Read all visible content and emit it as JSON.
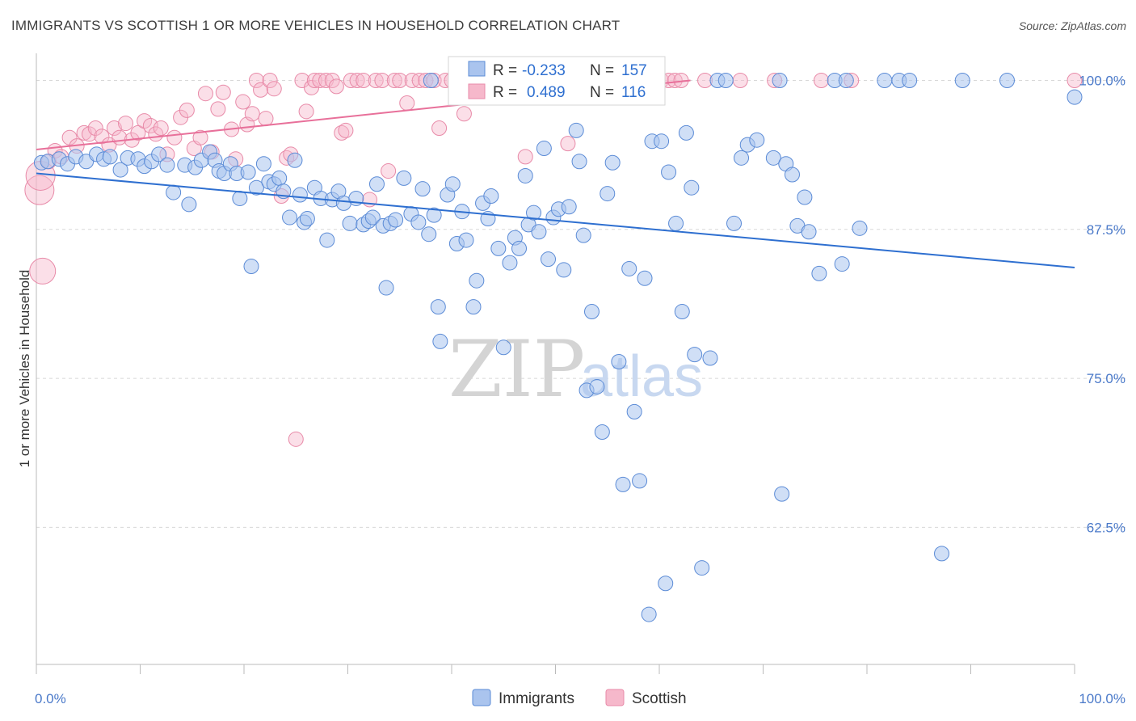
{
  "title": "IMMIGRANTS VS SCOTTISH 1 OR MORE VEHICLES IN HOUSEHOLD CORRELATION CHART",
  "source": "Source: ZipAtlas.com",
  "watermark": {
    "zip": "ZIP",
    "atlas": "atlas"
  },
  "colors": {
    "immigrants_fill": "#aac4ee",
    "immigrants_stroke": "#5b8bd6",
    "immigrants_line": "#2e6fd0",
    "scottish_fill": "#f6b8cb",
    "scottish_stroke": "#e88aa8",
    "scottish_line": "#e8709a",
    "tick_text": "#4a79c9",
    "grid": "#d8d8d8"
  },
  "legend": {
    "row1": {
      "r_label": "R =",
      "r_value": "-0.233",
      "n_label": "N =",
      "n_value": "157"
    },
    "row2": {
      "r_label": "R =",
      "r_value": "0.489",
      "n_label": "N =",
      "n_value": "116"
    }
  },
  "bottom_legend": {
    "immigrants": "Immigrants",
    "scottish": "Scottish"
  },
  "chart_data": {
    "type": "scatter",
    "title": "IMMIGRANTS VS SCOTTISH 1 OR MORE VEHICLES IN HOUSEHOLD CORRELATION CHART",
    "xlabel": "",
    "ylabel": "1 or more Vehicles in Household",
    "xlim": [
      0,
      100
    ],
    "ylim": [
      51,
      102
    ],
    "x_tick_labels": [
      "0.0%",
      "100.0%"
    ],
    "y_ticks": [
      100.0,
      87.5,
      75.0,
      62.5
    ],
    "y_tick_labels": [
      "100.0%",
      "87.5%",
      "75.0%",
      "62.5%"
    ],
    "grid": true,
    "legend_position": "top-center",
    "series": [
      {
        "name": "Immigrants",
        "r": -0.233,
        "n": 157,
        "trend": {
          "x": [
            0,
            100
          ],
          "y": [
            92.2,
            84.3
          ]
        },
        "points": [
          [
            0.5,
            93.1
          ],
          [
            1.1,
            93.2
          ],
          [
            2.2,
            93.4
          ],
          [
            3.0,
            93.0
          ],
          [
            3.8,
            93.6
          ],
          [
            4.8,
            93.2
          ],
          [
            5.8,
            93.8
          ],
          [
            6.5,
            93.4
          ],
          [
            7.1,
            93.6
          ],
          [
            8.1,
            92.5
          ],
          [
            8.8,
            93.5
          ],
          [
            9.8,
            93.4
          ],
          [
            10.4,
            92.8
          ],
          [
            11.1,
            93.2
          ],
          [
            11.8,
            93.8
          ],
          [
            12.6,
            92.9
          ],
          [
            13.2,
            90.6
          ],
          [
            14.3,
            92.9
          ],
          [
            14.7,
            89.6
          ],
          [
            15.3,
            92.7
          ],
          [
            15.9,
            93.3
          ],
          [
            16.7,
            94.0
          ],
          [
            17.2,
            93.3
          ],
          [
            17.6,
            92.4
          ],
          [
            18.1,
            92.2
          ],
          [
            18.7,
            93.0
          ],
          [
            19.3,
            92.2
          ],
          [
            19.6,
            90.1
          ],
          [
            20.4,
            92.3
          ],
          [
            20.7,
            84.4
          ],
          [
            21.2,
            91.0
          ],
          [
            21.9,
            93.0
          ],
          [
            22.4,
            91.5
          ],
          [
            22.9,
            91.3
          ],
          [
            23.4,
            91.8
          ],
          [
            23.8,
            90.7
          ],
          [
            24.4,
            88.5
          ],
          [
            24.9,
            93.3
          ],
          [
            25.4,
            90.4
          ],
          [
            25.8,
            88.1
          ],
          [
            26.1,
            88.4
          ],
          [
            26.8,
            91.0
          ],
          [
            27.4,
            90.1
          ],
          [
            28.0,
            86.6
          ],
          [
            28.5,
            90.0
          ],
          [
            29.1,
            90.7
          ],
          [
            29.6,
            89.7
          ],
          [
            30.2,
            88.0
          ],
          [
            30.8,
            90.1
          ],
          [
            31.5,
            87.9
          ],
          [
            32.0,
            88.2
          ],
          [
            32.4,
            88.5
          ],
          [
            32.8,
            91.3
          ],
          [
            33.4,
            87.8
          ],
          [
            33.7,
            82.6
          ],
          [
            34.1,
            88.0
          ],
          [
            34.6,
            88.3
          ],
          [
            35.4,
            91.8
          ],
          [
            36.1,
            88.8
          ],
          [
            36.8,
            88.1
          ],
          [
            37.2,
            90.9
          ],
          [
            37.8,
            87.1
          ],
          [
            38.3,
            88.7
          ],
          [
            38.7,
            81.0
          ],
          [
            38.9,
            78.1
          ],
          [
            39.6,
            90.4
          ],
          [
            40.1,
            91.3
          ],
          [
            40.5,
            86.3
          ],
          [
            41.0,
            89.0
          ],
          [
            41.4,
            86.6
          ],
          [
            42.1,
            81.0
          ],
          [
            42.4,
            83.2
          ],
          [
            43.0,
            89.7
          ],
          [
            43.5,
            88.4
          ],
          [
            43.8,
            90.3
          ],
          [
            44.5,
            85.9
          ],
          [
            45.0,
            77.6
          ],
          [
            45.6,
            84.7
          ],
          [
            46.1,
            86.8
          ],
          [
            46.5,
            85.9
          ],
          [
            47.1,
            92.0
          ],
          [
            47.4,
            87.9
          ],
          [
            47.9,
            88.9
          ],
          [
            48.4,
            87.3
          ],
          [
            48.9,
            94.3
          ],
          [
            49.3,
            85.0
          ],
          [
            49.8,
            88.5
          ],
          [
            50.3,
            89.2
          ],
          [
            50.8,
            84.1
          ],
          [
            51.3,
            89.4
          ],
          [
            52.0,
            95.8
          ],
          [
            52.3,
            93.2
          ],
          [
            52.7,
            87.0
          ],
          [
            53.0,
            74.0
          ],
          [
            53.5,
            80.6
          ],
          [
            54.0,
            74.3
          ],
          [
            54.5,
            70.5
          ],
          [
            55.0,
            90.5
          ],
          [
            55.5,
            93.1
          ],
          [
            56.1,
            76.4
          ],
          [
            56.5,
            66.1
          ],
          [
            57.1,
            84.2
          ],
          [
            57.6,
            72.2
          ],
          [
            58.1,
            66.4
          ],
          [
            58.6,
            83.4
          ],
          [
            59.0,
            55.2
          ],
          [
            59.3,
            94.9
          ],
          [
            60.2,
            94.9
          ],
          [
            60.6,
            57.8
          ],
          [
            60.9,
            92.3
          ],
          [
            61.6,
            88.0
          ],
          [
            62.2,
            80.6
          ],
          [
            62.6,
            95.6
          ],
          [
            63.1,
            91.0
          ],
          [
            63.4,
            77.0
          ],
          [
            64.1,
            59.1
          ],
          [
            64.9,
            76.7
          ],
          [
            65.6,
            100.0
          ],
          [
            66.4,
            100.0
          ],
          [
            67.2,
            88.0
          ],
          [
            67.9,
            93.5
          ],
          [
            68.5,
            94.6
          ],
          [
            69.4,
            95.0
          ],
          [
            71.0,
            93.5
          ],
          [
            71.6,
            100.0
          ],
          [
            72.2,
            93.0
          ],
          [
            72.8,
            92.1
          ],
          [
            73.3,
            87.8
          ],
          [
            74.0,
            90.2
          ],
          [
            74.4,
            87.3
          ],
          [
            75.4,
            83.8
          ],
          [
            76.9,
            100.0
          ],
          [
            77.6,
            84.6
          ],
          [
            78.0,
            100.0
          ],
          [
            79.3,
            87.6
          ],
          [
            81.7,
            100.0
          ],
          [
            83.1,
            100.0
          ],
          [
            84.1,
            100.0
          ],
          [
            87.2,
            60.3
          ],
          [
            89.2,
            100.0
          ],
          [
            93.5,
            100.0
          ],
          [
            100.0,
            98.6
          ],
          [
            71.8,
            65.3
          ],
          [
            38.0,
            100.0
          ],
          [
            45.8,
            100.0
          ],
          [
            52.4,
            100.0
          ],
          [
            57.9,
            100.0
          ]
        ]
      },
      {
        "name": "Scottish",
        "r": 0.489,
        "n": 116,
        "trend": {
          "x": [
            0,
            63
          ],
          "y": [
            94.2,
            100.0
          ]
        },
        "points": [
          [
            0.3,
            90.8
          ],
          [
            0.4,
            92.0
          ],
          [
            0.6,
            84.0
          ],
          [
            1.2,
            93.2
          ],
          [
            1.8,
            94.1
          ],
          [
            2.4,
            93.6
          ],
          [
            3.2,
            95.2
          ],
          [
            3.9,
            94.5
          ],
          [
            4.6,
            95.6
          ],
          [
            5.1,
            95.5
          ],
          [
            5.7,
            96.0
          ],
          [
            6.3,
            95.3
          ],
          [
            7.0,
            94.6
          ],
          [
            7.5,
            96.0
          ],
          [
            8.0,
            95.2
          ],
          [
            8.6,
            96.4
          ],
          [
            9.2,
            95.0
          ],
          [
            9.8,
            95.6
          ],
          [
            10.4,
            96.6
          ],
          [
            11.0,
            96.2
          ],
          [
            11.5,
            95.5
          ],
          [
            12.0,
            96.0
          ],
          [
            12.6,
            93.8
          ],
          [
            13.3,
            95.2
          ],
          [
            13.9,
            96.9
          ],
          [
            14.5,
            97.5
          ],
          [
            15.2,
            94.3
          ],
          [
            15.8,
            95.2
          ],
          [
            16.3,
            98.9
          ],
          [
            16.9,
            94.0
          ],
          [
            17.5,
            97.6
          ],
          [
            18.0,
            99.0
          ],
          [
            18.8,
            95.9
          ],
          [
            19.2,
            93.4
          ],
          [
            19.9,
            98.2
          ],
          [
            20.3,
            96.3
          ],
          [
            20.8,
            97.2
          ],
          [
            21.2,
            100.0
          ],
          [
            21.6,
            99.2
          ],
          [
            22.1,
            96.8
          ],
          [
            22.5,
            100.0
          ],
          [
            22.9,
            99.3
          ],
          [
            23.6,
            90.3
          ],
          [
            24.1,
            93.5
          ],
          [
            24.5,
            93.8
          ],
          [
            25.0,
            69.9
          ],
          [
            25.6,
            100.0
          ],
          [
            26.0,
            97.4
          ],
          [
            26.5,
            99.4
          ],
          [
            26.8,
            100.0
          ],
          [
            27.3,
            100.0
          ],
          [
            27.9,
            100.0
          ],
          [
            28.5,
            100.0
          ],
          [
            28.9,
            99.5
          ],
          [
            29.4,
            95.6
          ],
          [
            29.8,
            95.8
          ],
          [
            30.3,
            100.0
          ],
          [
            30.9,
            100.0
          ],
          [
            31.5,
            100.0
          ],
          [
            32.1,
            90.0
          ],
          [
            32.7,
            100.0
          ],
          [
            33.3,
            100.0
          ],
          [
            33.9,
            92.4
          ],
          [
            34.5,
            100.0
          ],
          [
            35.0,
            100.0
          ],
          [
            35.7,
            98.1
          ],
          [
            36.2,
            100.0
          ],
          [
            36.9,
            100.0
          ],
          [
            37.5,
            100.0
          ],
          [
            38.3,
            100.0
          ],
          [
            38.8,
            96.0
          ],
          [
            39.4,
            100.0
          ],
          [
            40.0,
            100.0
          ],
          [
            40.6,
            100.0
          ],
          [
            41.2,
            97.2
          ],
          [
            41.8,
            100.0
          ],
          [
            42.4,
            100.0
          ],
          [
            43.0,
            100.0
          ],
          [
            43.5,
            100.0
          ],
          [
            44.1,
            100.0
          ],
          [
            44.8,
            100.0
          ],
          [
            45.3,
            100.0
          ],
          [
            46.0,
            100.0
          ],
          [
            46.5,
            100.0
          ],
          [
            47.1,
            93.6
          ],
          [
            47.7,
            100.0
          ],
          [
            48.3,
            100.0
          ],
          [
            48.9,
            100.0
          ],
          [
            49.5,
            100.0
          ],
          [
            50.2,
            100.0
          ],
          [
            50.8,
            100.0
          ],
          [
            51.2,
            94.7
          ],
          [
            51.7,
            100.0
          ],
          [
            52.3,
            100.0
          ],
          [
            52.9,
            100.0
          ],
          [
            53.5,
            100.0
          ],
          [
            54.0,
            100.0
          ],
          [
            54.7,
            100.0
          ],
          [
            55.3,
            100.0
          ],
          [
            55.9,
            100.0
          ],
          [
            56.5,
            100.0
          ],
          [
            57.2,
            100.0
          ],
          [
            57.8,
            100.0
          ],
          [
            58.4,
            100.0
          ],
          [
            59.0,
            100.0
          ],
          [
            59.6,
            100.0
          ],
          [
            60.2,
            100.0
          ],
          [
            60.9,
            100.0
          ],
          [
            61.5,
            100.0
          ],
          [
            62.1,
            100.0
          ],
          [
            64.4,
            100.0
          ],
          [
            67.8,
            100.0
          ],
          [
            71.1,
            100.0
          ],
          [
            75.6,
            100.0
          ],
          [
            78.5,
            100.0
          ],
          [
            100.0,
            100.0
          ]
        ]
      }
    ]
  }
}
